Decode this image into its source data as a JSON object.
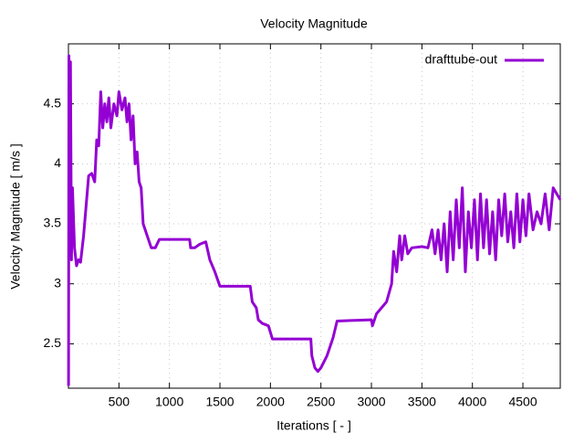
{
  "chart_data": {
    "type": "line",
    "title": "Velocity Magnitude",
    "x_label": "Iterations [ - ]",
    "y_label": "Velocity Magnitude [ m/s ]",
    "x": [
      1,
      5,
      10,
      20,
      30,
      40,
      60,
      80,
      100,
      120,
      150,
      180,
      200,
      230,
      260,
      280,
      300,
      320,
      340,
      360,
      380,
      400,
      420,
      450,
      480,
      500,
      530,
      560,
      580,
      600,
      620,
      640,
      660,
      680,
      700,
      720,
      740,
      780,
      820,
      860,
      900,
      1000,
      1200,
      1210,
      1250,
      1300,
      1360,
      1400,
      1450,
      1500,
      1800,
      1820,
      1860,
      1880,
      1920,
      1980,
      2020,
      2400,
      2410,
      2440,
      2470,
      2500,
      2560,
      2620,
      2660,
      3000,
      3010,
      3050,
      3100,
      3150,
      3200,
      3220,
      3250,
      3280,
      3300,
      3330,
      3360,
      3400,
      3500,
      3560,
      3600,
      3630,
      3660,
      3690,
      3720,
      3750,
      3780,
      3810,
      3840,
      3870,
      3900,
      3930,
      3960,
      3990,
      4020,
      4050,
      4080,
      4110,
      4140,
      4170,
      4200,
      4230,
      4260,
      4290,
      4320,
      4350,
      4380,
      4410,
      4440,
      4470,
      4500,
      4530,
      4560,
      4600,
      4640,
      4680,
      4720,
      4760,
      4800,
      4870
    ],
    "series": [
      {
        "name": "drafttube-out",
        "color": "#9400d3",
        "values": [
          2.15,
          4.9,
          3.3,
          4.85,
          3.2,
          3.8,
          3.3,
          3.15,
          3.2,
          3.18,
          3.4,
          3.7,
          3.9,
          3.92,
          3.85,
          4.2,
          4.15,
          4.6,
          4.3,
          4.5,
          4.35,
          4.55,
          4.3,
          4.5,
          4.4,
          4.6,
          4.45,
          4.55,
          4.35,
          4.5,
          4.2,
          4.4,
          4.0,
          4.1,
          3.85,
          3.8,
          3.5,
          3.4,
          3.3,
          3.3,
          3.37,
          3.37,
          3.37,
          3.3,
          3.3,
          3.33,
          3.35,
          3.2,
          3.1,
          2.98,
          2.98,
          2.85,
          2.8,
          2.7,
          2.67,
          2.65,
          2.54,
          2.54,
          2.4,
          2.3,
          2.27,
          2.3,
          2.4,
          2.55,
          2.69,
          2.7,
          2.65,
          2.75,
          2.8,
          2.85,
          3.0,
          3.27,
          3.1,
          3.4,
          3.2,
          3.4,
          3.25,
          3.3,
          3.31,
          3.3,
          3.45,
          3.25,
          3.45,
          3.2,
          3.5,
          3.1,
          3.6,
          3.2,
          3.7,
          3.3,
          3.8,
          3.1,
          3.6,
          3.3,
          3.7,
          3.2,
          3.75,
          3.3,
          3.7,
          3.25,
          3.6,
          3.2,
          3.7,
          3.4,
          3.75,
          3.35,
          3.6,
          3.3,
          3.75,
          3.35,
          3.7,
          3.4,
          3.75,
          3.45,
          3.6,
          3.5,
          3.75,
          3.45,
          3.8,
          3.7
        ]
      }
    ],
    "xlim": [
      0,
      4870
    ],
    "ylim": [
      2.13,
      5.0
    ],
    "xticks": [
      500,
      1000,
      1500,
      2000,
      2500,
      3000,
      3500,
      4000,
      4500
    ],
    "yticks": [
      2.5,
      3,
      3.5,
      4,
      4.5
    ],
    "grid": true,
    "legend": "top-right"
  }
}
